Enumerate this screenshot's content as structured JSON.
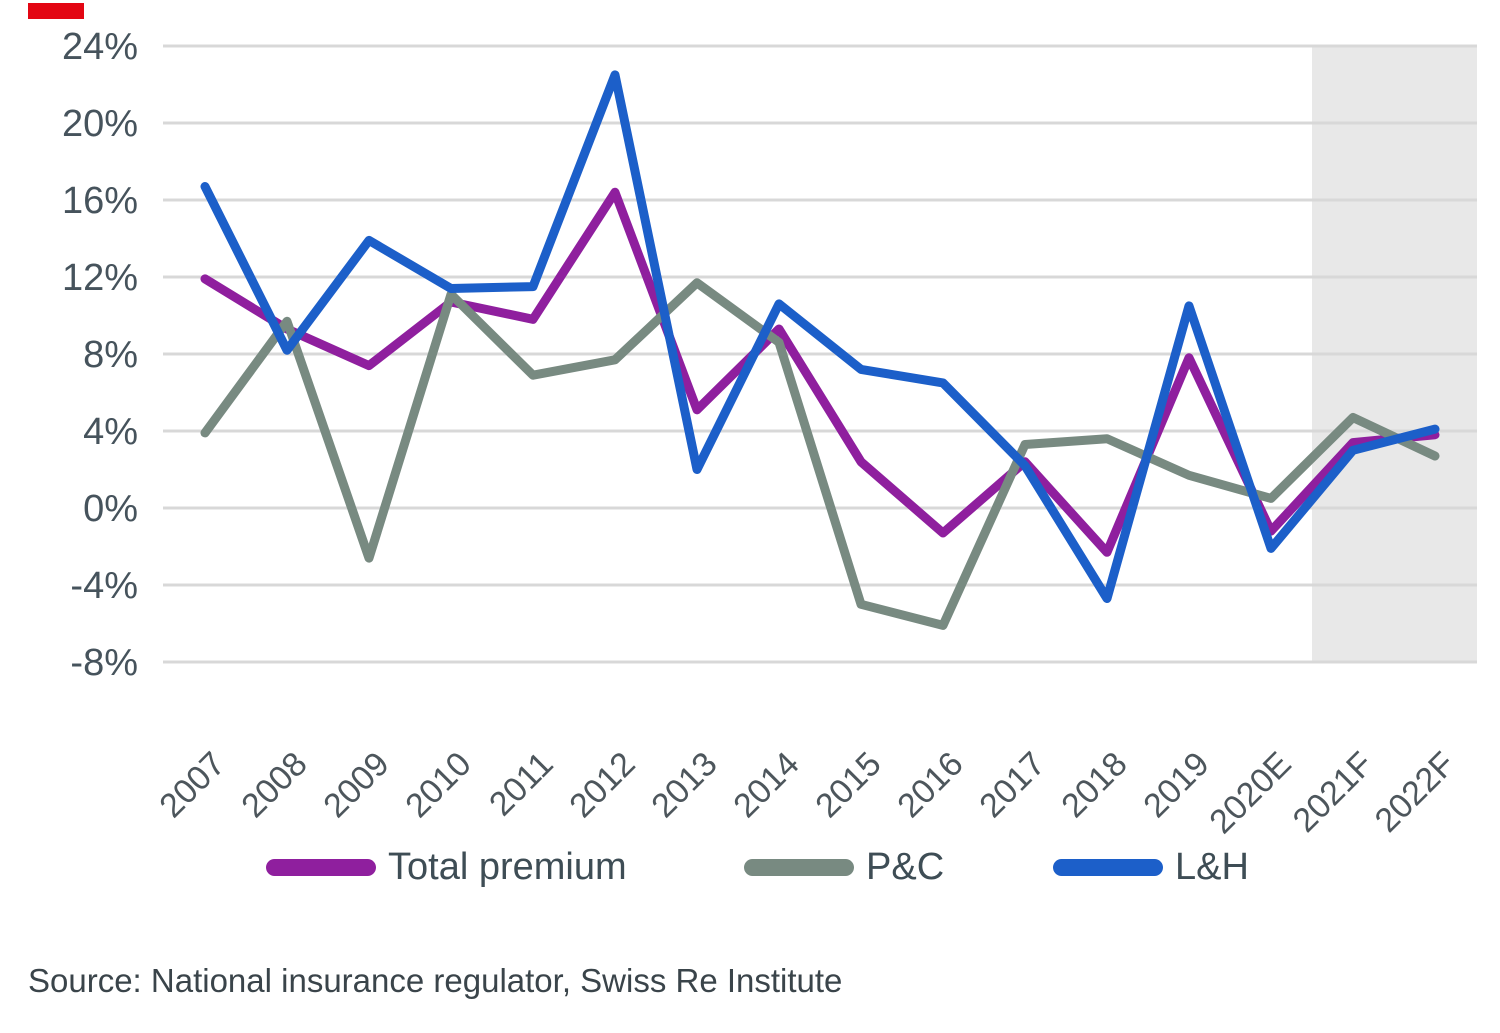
{
  "brand_mark": {
    "color": "#e30613"
  },
  "chart_data": {
    "type": "line",
    "title": "",
    "xlabel": "",
    "ylabel": "",
    "categories": [
      "2007",
      "2008",
      "2009",
      "2010",
      "2011",
      "2012",
      "2013",
      "2014",
      "2015",
      "2016",
      "2017",
      "2018",
      "2019",
      "2020E",
      "2021F",
      "2022F"
    ],
    "series": [
      {
        "name": "Total premium",
        "color": "#8f1f9e",
        "values": [
          11.9,
          9.3,
          7.4,
          10.7,
          9.8,
          16.4,
          5.1,
          9.3,
          2.4,
          -1.3,
          2.4,
          -2.3,
          7.8,
          -1.2,
          3.4,
          3.8
        ]
      },
      {
        "name": "P&C",
        "color": "#788a81",
        "values": [
          3.9,
          9.7,
          -2.6,
          11.1,
          6.9,
          7.7,
          11.7,
          8.6,
          -5.0,
          -6.1,
          3.3,
          3.6,
          1.7,
          0.5,
          4.7,
          2.7
        ]
      },
      {
        "name": "L&H",
        "color": "#1c5fc9",
        "values": [
          16.7,
          8.2,
          13.9,
          11.4,
          11.5,
          22.5,
          2.0,
          10.6,
          7.2,
          6.5,
          2.2,
          -4.7,
          10.5,
          -2.1,
          3.0,
          4.1
        ]
      }
    ],
    "yticks": {
      "labels": [
        "24%",
        "20%",
        "16%",
        "12%",
        "8%",
        "4%",
        "0%",
        "-4%",
        "-8%"
      ],
      "values": [
        24,
        20,
        16,
        12,
        8,
        4,
        0,
        -4,
        -8
      ]
    },
    "ylim": [
      -8,
      24
    ],
    "grid": "horizontal",
    "gridline_color": "#d8d8d8",
    "legend_position": "bottom",
    "forecast_shade": {
      "covers": [
        "2021F",
        "2022F"
      ],
      "color": "#e8e8e8"
    }
  },
  "source_text": "Source: National insurance regulator, Swiss Re Institute"
}
